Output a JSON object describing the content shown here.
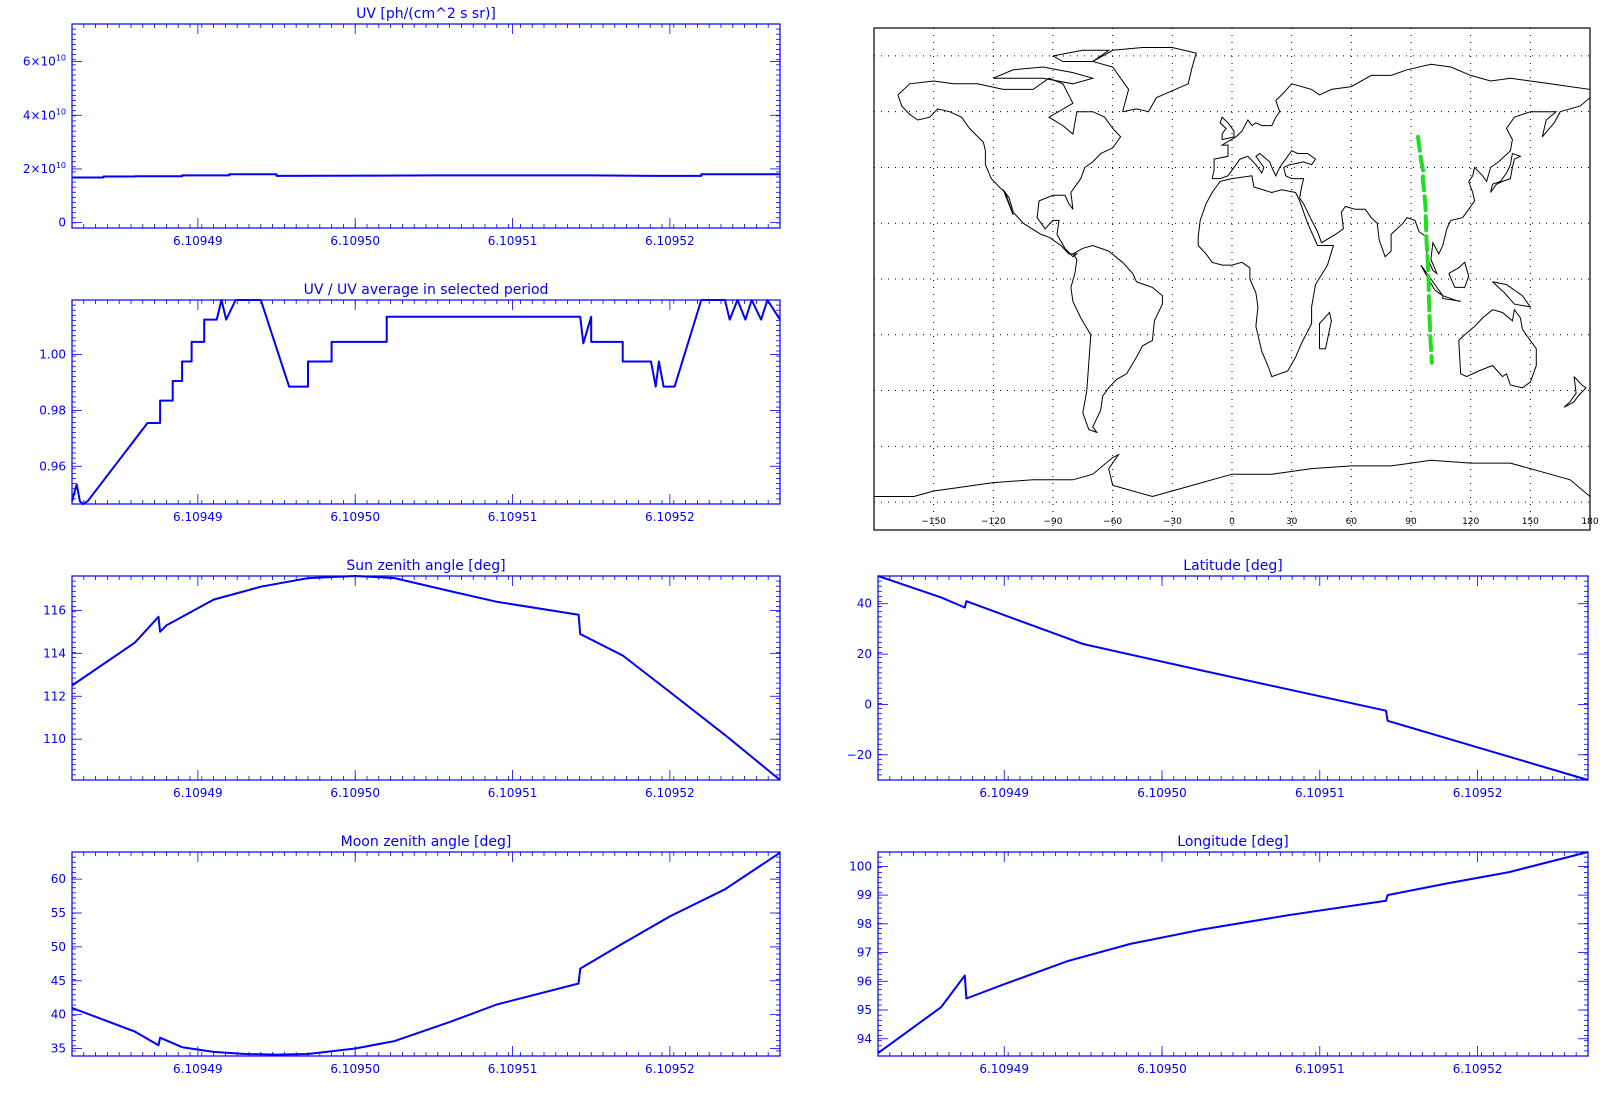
{
  "colors": {
    "axis": "#0000ff",
    "line": "#0000ff",
    "track": "#22dd22",
    "map": "#000000"
  },
  "x_ticks": [
    "6.10949",
    "6.10950",
    "6.10951",
    "6.10952"
  ],
  "chart_data": [
    {
      "id": "uv",
      "type": "line",
      "title": "UV [ph/(cm^2 s sr)]",
      "xlim": [
        6.109482,
        6.109527
      ],
      "xticks": [
        6.10949,
        6.1095,
        6.10951,
        6.10952
      ],
      "ylim": [
        -2000000000.0,
        74000000000.0
      ],
      "yticks": [
        0,
        20000000000.0,
        40000000000.0,
        60000000000.0
      ],
      "ytick_labels": [
        {
          "m": "0",
          "e": ""
        },
        {
          "m": "2×10",
          "e": "10"
        },
        {
          "m": "4×10",
          "e": "10"
        },
        {
          "m": "6×10",
          "e": "10"
        }
      ],
      "x": [
        6.109482,
        6.109484,
        6.109484,
        6.109486,
        6.109486,
        6.109489,
        6.109489,
        6.109492,
        6.109492,
        6.109495,
        6.109495,
        6.109505,
        6.109515,
        6.109519,
        6.109521,
        6.109522,
        6.109522,
        6.109527
      ],
      "y": [
        16800000000.0,
        16800000000.0,
        17200000000.0,
        17200000000.0,
        17300000000.0,
        17300000000.0,
        17600000000.0,
        17600000000.0,
        18000000000.0,
        18000000000.0,
        17400000000.0,
        17600000000.0,
        17600000000.0,
        17400000000.0,
        17400000000.0,
        17400000000.0,
        18000000000.0,
        18000000000.0
      ]
    },
    {
      "id": "uv_ratio",
      "type": "line",
      "title": "UV / UV average in selected period",
      "xlim": [
        6.109482,
        6.109527
      ],
      "xticks": [
        6.10949,
        6.1095,
        6.10951,
        6.10952
      ],
      "ylim": [
        0.9465,
        1.0195
      ],
      "yticks": [
        0.96,
        0.98,
        1.0
      ],
      "ytick_labels": [
        {
          "m": "0.96",
          "e": ""
        },
        {
          "m": "0.98",
          "e": ""
        },
        {
          "m": "1.00",
          "e": ""
        }
      ],
      "x": [
        6.109482,
        6.1094823,
        6.1094825,
        6.1094827,
        6.109483,
        6.1094868,
        6.1094876,
        6.1094876,
        6.1094884,
        6.1094884,
        6.109489,
        6.109489,
        6.1094896,
        6.1094896,
        6.1094904,
        6.1094904,
        6.1094912,
        6.1094915,
        6.1094918,
        6.1094924,
        6.1094926,
        6.1094928,
        6.109493,
        6.109494,
        6.1094958,
        6.1094966,
        6.109497,
        6.109497,
        6.1094985,
        6.1094985,
        6.109502,
        6.109502,
        6.1095025,
        6.1095025,
        6.1095143,
        6.1095145,
        6.109515,
        6.109515,
        6.109517,
        6.109517,
        6.1095188,
        6.1095191,
        6.1095193,
        6.1095196,
        6.1095203,
        6.109522,
        6.1095235,
        6.1095238,
        6.1095243,
        6.1095248,
        6.1095252,
        6.1095258,
        6.1095262,
        6.109527
      ],
      "y": [
        0.9475,
        0.9535,
        0.9475,
        0.9465,
        0.9475,
        0.9755,
        0.9755,
        0.9835,
        0.9835,
        0.9905,
        0.9905,
        0.9975,
        0.9975,
        1.0045,
        1.0045,
        1.0125,
        1.0125,
        1.0195,
        1.0125,
        1.0195,
        1.0195,
        1.0195,
        1.0195,
        1.0195,
        0.9885,
        0.9885,
        0.9885,
        0.9975,
        0.9975,
        1.0045,
        1.0045,
        1.0135,
        1.0135,
        1.0135,
        1.0135,
        1.004,
        1.0135,
        1.0045,
        1.0045,
        0.9975,
        0.9975,
        0.9885,
        0.9975,
        0.9885,
        0.9885,
        1.0195,
        1.0195,
        1.0125,
        1.0195,
        1.0125,
        1.0195,
        1.0125,
        1.0195,
        1.0125
      ]
    },
    {
      "id": "sza",
      "type": "line",
      "title": "Sun zenith angle [deg]",
      "xlim": [
        6.109482,
        6.109527
      ],
      "xticks": [
        6.10949,
        6.1095,
        6.10951,
        6.10952
      ],
      "ylim": [
        108.1,
        117.6
      ],
      "yticks": [
        110,
        112,
        114,
        116
      ],
      "ytick_labels": [
        {
          "m": "110",
          "e": ""
        },
        {
          "m": "112",
          "e": ""
        },
        {
          "m": "114",
          "e": ""
        },
        {
          "m": "116",
          "e": ""
        }
      ],
      "x": [
        6.109482,
        6.109486,
        6.1094875,
        6.1094876,
        6.109488,
        6.109491,
        6.109494,
        6.109497,
        6.1095,
        6.1095025,
        6.109506,
        6.109509,
        6.1095142,
        6.1095143,
        6.109517,
        6.10952,
        6.1095235,
        6.109527
      ],
      "y": [
        112.5,
        114.5,
        115.7,
        115.0,
        115.3,
        116.5,
        117.1,
        117.5,
        117.6,
        117.5,
        116.9,
        116.4,
        115.8,
        114.9,
        113.9,
        112.2,
        110.2,
        108.1
      ]
    },
    {
      "id": "mza",
      "type": "line",
      "title": "Moon zenith angle [deg]",
      "xlim": [
        6.109482,
        6.109527
      ],
      "xticks": [
        6.10949,
        6.1095,
        6.10951,
        6.10952
      ],
      "ylim": [
        33.9,
        64.0
      ],
      "yticks": [
        35,
        40,
        45,
        50,
        55,
        60
      ],
      "ytick_labels": [
        {
          "m": "35",
          "e": ""
        },
        {
          "m": "40",
          "e": ""
        },
        {
          "m": "45",
          "e": ""
        },
        {
          "m": "50",
          "e": ""
        },
        {
          "m": "55",
          "e": ""
        },
        {
          "m": "60",
          "e": ""
        }
      ],
      "x": [
        6.109482,
        6.109486,
        6.1094875,
        6.1094876,
        6.109489,
        6.109491,
        6.109493,
        6.109495,
        6.109497,
        6.1095,
        6.1095025,
        6.109506,
        6.109509,
        6.1095142,
        6.1095143,
        6.109517,
        6.10952,
        6.1095235,
        6.109527
      ],
      "y": [
        41.0,
        37.5,
        35.5,
        36.6,
        35.2,
        34.5,
        34.2,
        34.1,
        34.2,
        35.0,
        36.1,
        38.9,
        41.5,
        44.6,
        46.8,
        50.5,
        54.5,
        58.5,
        63.9
      ]
    },
    {
      "id": "lat",
      "type": "line",
      "title": "Latitude [deg]",
      "xlim": [
        6.109482,
        6.109527
      ],
      "xticks": [
        6.10949,
        6.1095,
        6.10951,
        6.10952
      ],
      "ylim": [
        -30,
        51
      ],
      "yticks": [
        -20,
        0,
        20,
        40
      ],
      "ytick_labels": [
        {
          "m": "−20",
          "e": ""
        },
        {
          "m": "0",
          "e": ""
        },
        {
          "m": "20",
          "e": ""
        },
        {
          "m": "40",
          "e": ""
        }
      ],
      "x": [
        6.109482,
        6.109486,
        6.1094875,
        6.1094876,
        6.109495,
        6.1095025,
        6.1095142,
        6.1095143,
        6.109527
      ],
      "y": [
        51.0,
        42.5,
        38.5,
        41.0,
        24.0,
        13.5,
        -2.5,
        -6.5,
        -30.0
      ]
    },
    {
      "id": "lon",
      "type": "line",
      "title": "Longitude [deg]",
      "xlim": [
        6.109482,
        6.109527
      ],
      "xticks": [
        6.10949,
        6.1095,
        6.10951,
        6.10952
      ],
      "ylim": [
        93.4,
        100.5
      ],
      "yticks": [
        94,
        95,
        96,
        97,
        98,
        99,
        100
      ],
      "ytick_labels": [
        {
          "m": "94",
          "e": ""
        },
        {
          "m": "95",
          "e": ""
        },
        {
          "m": "96",
          "e": ""
        },
        {
          "m": "97",
          "e": ""
        },
        {
          "m": "98",
          "e": ""
        },
        {
          "m": "99",
          "e": ""
        },
        {
          "m": "100",
          "e": ""
        }
      ],
      "x": [
        6.109482,
        6.109486,
        6.1094875,
        6.1094876,
        6.10949,
        6.109494,
        6.109498,
        6.1095025,
        6.109508,
        6.1095142,
        6.1095143,
        6.109518,
        6.109522,
        6.109527
      ],
      "y": [
        93.5,
        95.1,
        96.2,
        95.4,
        95.9,
        96.7,
        97.3,
        97.8,
        98.3,
        98.8,
        99.0,
        99.4,
        99.8,
        100.5
      ]
    },
    {
      "id": "map",
      "type": "map",
      "title": "",
      "xlim": [
        -180,
        180
      ],
      "ylim": [
        -90,
        90
      ],
      "xticks": [
        -150,
        -120,
        -90,
        -60,
        -30,
        0,
        30,
        60,
        90,
        120,
        150,
        180
      ],
      "xtick_labels": [
        "−150",
        "−120",
        "−90",
        "−60",
        "−30",
        "0",
        "30",
        "60",
        "90",
        "120",
        "150",
        "180"
      ],
      "ygrid": [
        -80,
        -60,
        -40,
        -20,
        0,
        20,
        40,
        60,
        80
      ],
      "track_lon": [
        93.5,
        95.1,
        96.2,
        95.9,
        96.7,
        97.3,
        97.8,
        98.3,
        98.8,
        99.0,
        99.4,
        99.8,
        100.5
      ],
      "track_lat": [
        51.0,
        42.5,
        38.5,
        36.0,
        31.0,
        26.0,
        13.5,
        8.0,
        1.0,
        -6.5,
        -15.0,
        -22.0,
        -30.0
      ]
    }
  ]
}
